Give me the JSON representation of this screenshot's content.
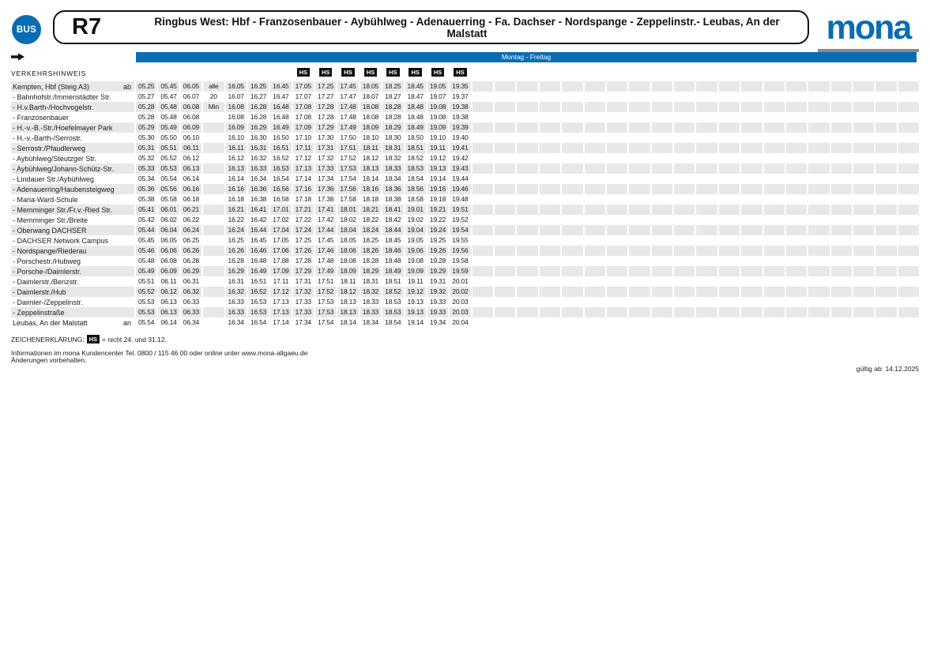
{
  "colors": {
    "brand_blue": "#0a6db4",
    "row_shade": "#e8e8e8",
    "logo_underline_gray": "#8a8a8a",
    "badge_black": "#111111"
  },
  "header": {
    "bus_badge_label": "BUS",
    "line_number": "R7",
    "route_title": "Ringbus West: Hbf - Franzosenbauer - Aybühlweg - Adenauerring - Fa. Dachser - Nordspange - Zeppelinstr.- Leubas, An der Malstatt",
    "brand_wordmark": "mona",
    "service_days_band": "Montag - Freitag"
  },
  "table": {
    "traffic_note_label": "VERKEHRSHINWEIS",
    "hs_badge_label": "HS",
    "hs_time_indices": [
      6,
      7,
      8,
      9,
      10,
      11,
      12,
      13
    ],
    "interval_note": [
      "alle",
      "20",
      "Min"
    ],
    "rows": [
      {
        "name": "Kempten, Hbf (Steig A3)",
        "marker": "ab",
        "times": [
          "05.25",
          "05.45",
          "06.05",
          "16.05",
          "16.25",
          "16.45",
          "17.05",
          "17.25",
          "17.45",
          "18.05",
          "18.25",
          "18.45",
          "19.05",
          "19.35"
        ]
      },
      {
        "name": "- Bahnhofstr./Immenstädter Str.",
        "marker": "",
        "times": [
          "05.27",
          "05.47",
          "06.07",
          "16.07",
          "16.27",
          "16.47",
          "17.07",
          "17.27",
          "17.47",
          "18.07",
          "18.27",
          "18.47",
          "19.07",
          "19.37"
        ]
      },
      {
        "name": "- H.v.Barth-/Hochvogelstr.",
        "marker": "",
        "times": [
          "05.28",
          "05.48",
          "06.08",
          "16.08",
          "16.28",
          "16.48",
          "17.08",
          "17.28",
          "17.48",
          "18.08",
          "18.28",
          "18.48",
          "19.08",
          "19.38"
        ]
      },
      {
        "name": "- Franzosenbauer",
        "marker": "",
        "times": [
          "05.28",
          "05.48",
          "06.08",
          "16.08",
          "16.28",
          "16.48",
          "17.08",
          "17.28",
          "17.48",
          "18.08",
          "18.28",
          "18.48",
          "19.08",
          "19.38"
        ]
      },
      {
        "name": "- H.-v.-B.-Str./Hoefelmayer Park",
        "marker": "",
        "times": [
          "05.29",
          "05.49",
          "06.09",
          "16.09",
          "16.29",
          "16.49",
          "17.09",
          "17.29",
          "17.49",
          "18.09",
          "18.29",
          "18.49",
          "19.09",
          "19.39"
        ]
      },
      {
        "name": "- H.-v.-Barth-/Serrostr.",
        "marker": "",
        "times": [
          "05.30",
          "05.50",
          "06.10",
          "16.10",
          "16.30",
          "16.50",
          "17.10",
          "17.30",
          "17.50",
          "18.10",
          "18.30",
          "18.50",
          "19.10",
          "19.40"
        ]
      },
      {
        "name": "- Serrostr./Pfaudlerweg",
        "marker": "",
        "times": [
          "05.31",
          "05.51",
          "06.11",
          "16.11",
          "16.31",
          "16.51",
          "17.11",
          "17.31",
          "17.51",
          "18.11",
          "18.31",
          "18.51",
          "19.11",
          "19.41"
        ]
      },
      {
        "name": "- Aybühlweg/Steutzger Str.",
        "marker": "",
        "times": [
          "05.32",
          "05.52",
          "06.12",
          "16.12",
          "16.32",
          "16.52",
          "17.12",
          "17.32",
          "17.52",
          "18.12",
          "18.32",
          "18.52",
          "19.12",
          "19.42"
        ]
      },
      {
        "name": "- Aybühlweg/Johann-Schütz-Str.",
        "marker": "",
        "times": [
          "05.33",
          "05.53",
          "06.13",
          "16.13",
          "16.33",
          "16.53",
          "17.13",
          "17.33",
          "17.53",
          "18.13",
          "18.33",
          "18.53",
          "19.13",
          "19.43"
        ]
      },
      {
        "name": "- Lindauer Str./Aybühlweg",
        "marker": "",
        "times": [
          "05.34",
          "05.54",
          "06.14",
          "16.14",
          "16.34",
          "16.54",
          "17.14",
          "17.34",
          "17.54",
          "18.14",
          "18.34",
          "18.54",
          "19.14",
          "19.44"
        ]
      },
      {
        "name": "- Adenauerring/Haubensteigweg",
        "marker": "",
        "times": [
          "05.36",
          "05.56",
          "06.16",
          "16.16",
          "16.36",
          "16.56",
          "17.16",
          "17.36",
          "17.56",
          "18.16",
          "18.36",
          "18.56",
          "19.16",
          "19.46"
        ]
      },
      {
        "name": "- Maria-Ward-Schule",
        "marker": "",
        "times": [
          "05.38",
          "05.58",
          "06.18",
          "16.18",
          "16.38",
          "16.58",
          "17.18",
          "17.38",
          "17.58",
          "18.18",
          "18.38",
          "18.58",
          "19.18",
          "19.48"
        ]
      },
      {
        "name": "- Memminger Str./Fr.v.-Ried Str.",
        "marker": "",
        "times": [
          "05.41",
          "06.01",
          "06.21",
          "16.21",
          "16.41",
          "17.01",
          "17.21",
          "17.41",
          "18.01",
          "18.21",
          "18.41",
          "19.01",
          "19.21",
          "19.51"
        ]
      },
      {
        "name": "- Memminger Str./Breite",
        "marker": "",
        "times": [
          "05.42",
          "06.02",
          "06.22",
          "16.22",
          "16.42",
          "17.02",
          "17.22",
          "17.42",
          "18.02",
          "18.22",
          "18.42",
          "19.02",
          "19.22",
          "19.52"
        ]
      },
      {
        "name": "- Oberwang DACHSER",
        "marker": "",
        "times": [
          "05.44",
          "06.04",
          "06.24",
          "16.24",
          "16.44",
          "17.04",
          "17.24",
          "17.44",
          "18.04",
          "18.24",
          "18.44",
          "19.04",
          "19.24",
          "19.54"
        ]
      },
      {
        "name": "- DACHSER Network Campus",
        "marker": "",
        "times": [
          "05.45",
          "06.05",
          "06.25",
          "16.25",
          "16.45",
          "17.05",
          "17.25",
          "17.45",
          "18.05",
          "18.25",
          "18.45",
          "19.05",
          "19.25",
          "19.55"
        ]
      },
      {
        "name": "- Nordspange/Riederau",
        "marker": "",
        "times": [
          "05.46",
          "06.06",
          "06.26",
          "16.26",
          "16.46",
          "17.06",
          "17.26",
          "17.46",
          "18.06",
          "18.26",
          "18.46",
          "19.06",
          "19.26",
          "19.56"
        ]
      },
      {
        "name": "- Porschestr./Hubweg",
        "marker": "",
        "times": [
          "05.48",
          "06.08",
          "06.28",
          "16.28",
          "16.48",
          "17.08",
          "17.28",
          "17.48",
          "18.08",
          "18.28",
          "18.48",
          "19.08",
          "19.28",
          "19.58"
        ]
      },
      {
        "name": "- Porsche-/Daimlerstr.",
        "marker": "",
        "times": [
          "05.49",
          "06.09",
          "06.29",
          "16.29",
          "16.49",
          "17.09",
          "17.29",
          "17.49",
          "18.09",
          "18.29",
          "18.49",
          "19.09",
          "19.29",
          "19.59"
        ]
      },
      {
        "name": "- Daimlerstr./Benzstr.",
        "marker": "",
        "times": [
          "05.51",
          "06.11",
          "06.31",
          "16.31",
          "16.51",
          "17.11",
          "17.31",
          "17.51",
          "18.11",
          "18.31",
          "18.51",
          "19.11",
          "19.31",
          "20.01"
        ]
      },
      {
        "name": "- Daimlerstr./Hub",
        "marker": "",
        "times": [
          "05.52",
          "06.12",
          "06.32",
          "16.32",
          "16.52",
          "17.12",
          "17.32",
          "17.52",
          "18.12",
          "18.32",
          "18.52",
          "19.12",
          "19.32",
          "20.02"
        ]
      },
      {
        "name": "- Daimler-/Zeppelinstr.",
        "marker": "",
        "times": [
          "05.53",
          "06.13",
          "06.33",
          "16.33",
          "16.53",
          "17.13",
          "17.33",
          "17.53",
          "18.13",
          "18.33",
          "18.53",
          "19.13",
          "19.33",
          "20.03"
        ]
      },
      {
        "name": "- Zeppelinstraße",
        "marker": "",
        "times": [
          "05.53",
          "06.13",
          "06.33",
          "16.33",
          "16.53",
          "17.13",
          "17.33",
          "17.53",
          "18.13",
          "18.33",
          "18.53",
          "19.13",
          "19.33",
          "20.03"
        ]
      },
      {
        "name": "Leubas, An der Malstatt",
        "marker": "an",
        "times": [
          "05.54",
          "06.14",
          "06.34",
          "16.34",
          "16.54",
          "17.14",
          "17.34",
          "17.54",
          "18.14",
          "18.34",
          "18.54",
          "19.14",
          "19.34",
          "20.04"
        ]
      }
    ]
  },
  "legend": {
    "label": "ZEICHENERKLÄRUNG:",
    "badge": "HS",
    "text": "= nicht 24. und 31.12."
  },
  "footer": {
    "info_line1": "Informationen im mona Kundencenter Tel. 0800 / 115 46 00 oder online unter www.mona-allgaeu.de",
    "info_line2": "Änderungen vorbehalten.",
    "validity": "gültig ab: 14.12.2025"
  }
}
